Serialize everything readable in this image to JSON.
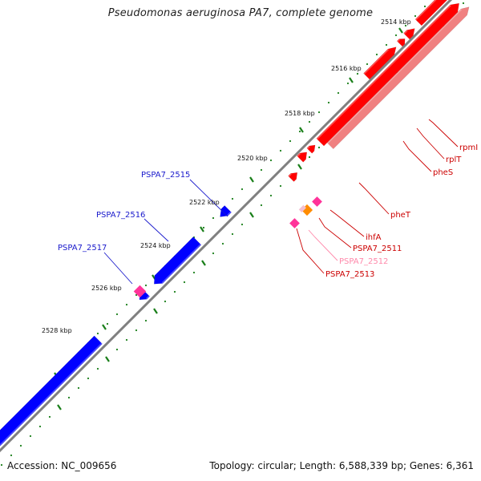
{
  "title": "Pseudomonas aeruginosa PA7, complete genome",
  "footer": {
    "accession": "Accession: NC_009656",
    "topology": "Topology: circular; Length: 6,588,339 bp; Genes: 6,361"
  },
  "colors": {
    "backbone": "#808080",
    "forward_gene": "#ff0000",
    "forward_gene_light": "#f08080",
    "reverse_gene": "#0000ff",
    "trna": "#ff3399",
    "rrna_other": "#ff8c00",
    "tick": "#1a7f1a"
  },
  "kbp_labels": [
    "2514 kbp",
    "2516 kbp",
    "2518 kbp",
    "2520 kbp",
    "2522 kbp",
    "2524 kbp",
    "2526 kbp",
    "2528 kbp"
  ],
  "forward_labels": [
    "rpmI",
    "rplT",
    "pheS",
    "pheT",
    "ihfA",
    "PSPA7_2511",
    "PSPA7_2512",
    "PSPA7_2513"
  ],
  "reverse_labels": [
    "PSPA7_2515",
    "PSPA7_2516",
    "PSPA7_2517"
  ]
}
